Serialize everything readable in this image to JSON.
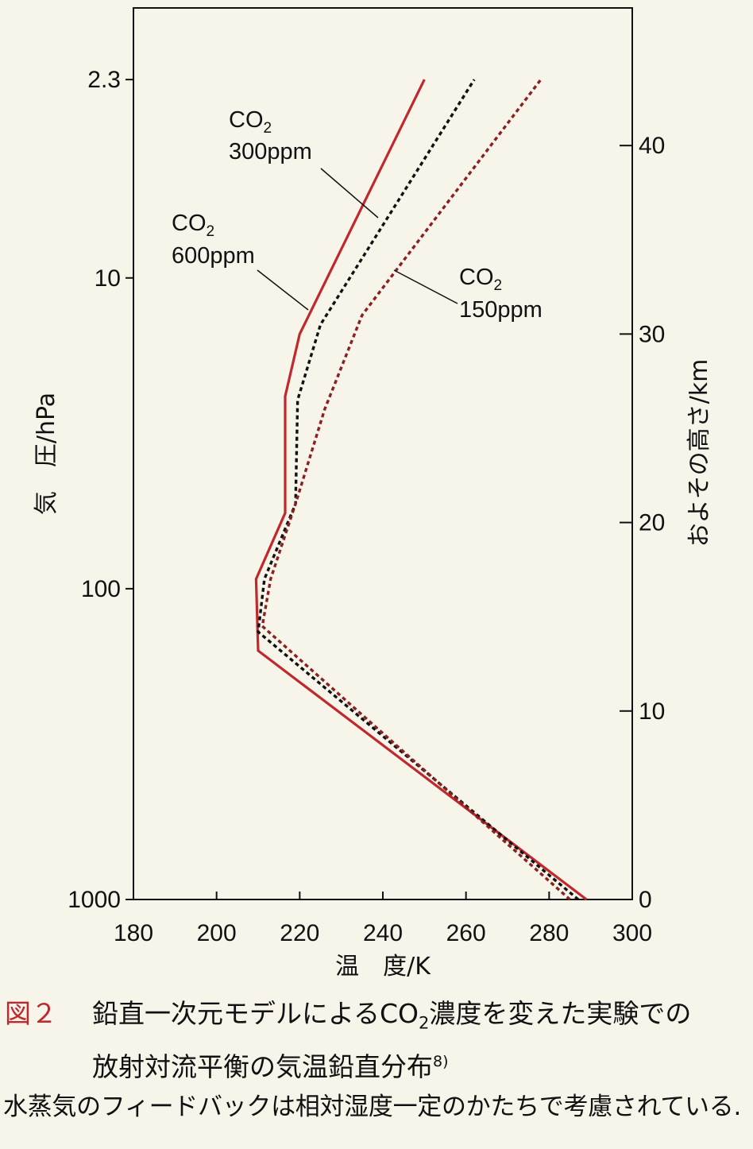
{
  "chart_data": {
    "type": "line",
    "xlabel": "温　度/K",
    "ylabel_left": "気　圧/hPa",
    "ylabel_right": "およその高さ/km",
    "xlim": [
      180,
      300
    ],
    "x_ticks": [
      180,
      200,
      220,
      240,
      260,
      280,
      300
    ],
    "y_left_scale": "log",
    "y_left_lim": [
      1000,
      2.3
    ],
    "y_left_ticks": [
      {
        "value": 2.3,
        "label": "2.3"
      },
      {
        "value": 10,
        "label": "10"
      },
      {
        "value": 100,
        "label": "100"
      },
      {
        "value": 1000,
        "label": "1000"
      }
    ],
    "y_right_lim": [
      0,
      43
    ],
    "y_right_ticks": [
      0,
      10,
      20,
      30,
      40
    ],
    "series": [
      {
        "name": "CO2 600ppm",
        "color": "#c0282d",
        "style": "solid",
        "points": [
          [
            289,
            0
          ],
          [
            210,
            13.2
          ],
          [
            209.5,
            17
          ],
          [
            216.5,
            20.5
          ],
          [
            216.5,
            26.7
          ],
          [
            220,
            30
          ],
          [
            250,
            43.5
          ]
        ]
      },
      {
        "name": "CO2 300ppm",
        "color": "#111111",
        "style": "dotted",
        "points": [
          [
            287,
            0
          ],
          [
            210,
            14.2
          ],
          [
            211.5,
            17
          ],
          [
            219,
            21
          ],
          [
            219.5,
            26.5
          ],
          [
            225,
            30.5
          ],
          [
            262,
            43.5
          ]
        ]
      },
      {
        "name": "CO2 150ppm",
        "color": "#8a2020",
        "style": "dotted",
        "points": [
          [
            285,
            0
          ],
          [
            211,
            14.5
          ],
          [
            213,
            17
          ],
          [
            219,
            21
          ],
          [
            226,
            26
          ],
          [
            235,
            31
          ],
          [
            278,
            43.5
          ]
        ]
      }
    ],
    "annotations": [
      {
        "series": "CO2 300ppm",
        "line1": "CO",
        "sub": "2",
        "line2": "300ppm"
      },
      {
        "series": "CO2 600ppm",
        "line1": "CO",
        "sub": "2",
        "line2": "600ppm"
      },
      {
        "series": "CO2 150ppm",
        "line1": "CO",
        "sub": "2",
        "line2": "150ppm"
      }
    ]
  },
  "caption": {
    "label": "図２",
    "text_part1": "鉛直一次元モデルによるCO",
    "text_sub": "2",
    "text_part2": "濃度を変えた実験での",
    "text_line2": "放射対流平衡の気温鉛直分布",
    "ref": "8)",
    "note": "水蒸気のフィードバックは相対湿度一定のかたちで考慮されている."
  }
}
